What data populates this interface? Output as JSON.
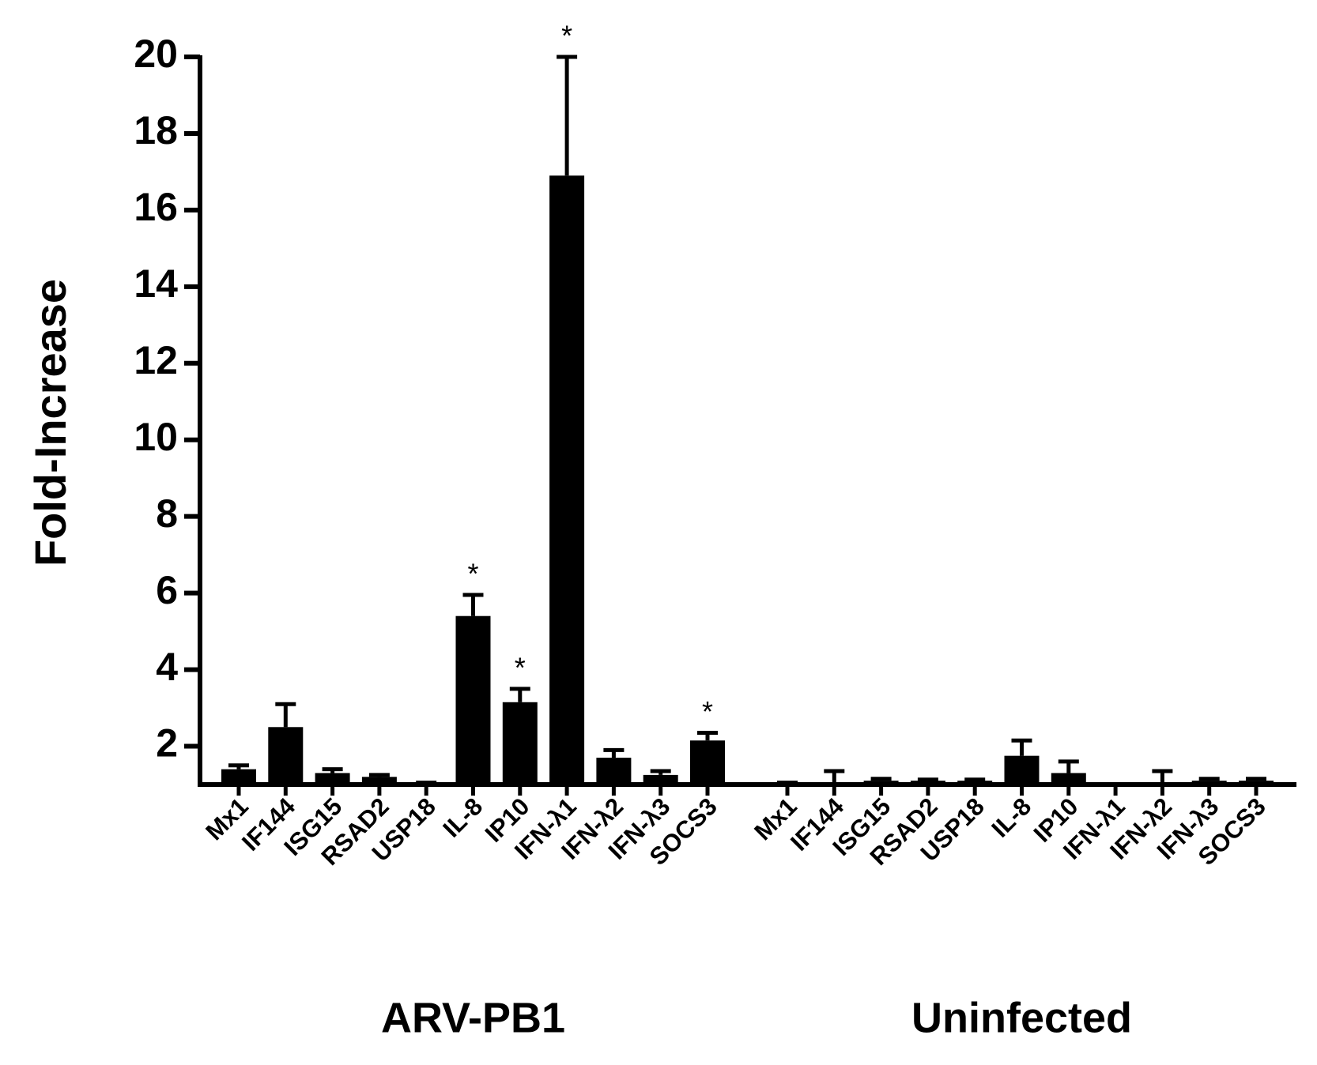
{
  "chart_data": {
    "type": "bar",
    "ylabel": "Fold-Increase",
    "ylim": [
      1,
      20
    ],
    "yticks": [
      2,
      4,
      6,
      8,
      10,
      12,
      14,
      16,
      18,
      20
    ],
    "color": "#000000",
    "groups": [
      {
        "name": "ARV-PB1",
        "categories": [
          "Mx1",
          "IF144",
          "ISG15",
          "RSAD2",
          "USP18",
          "IL-8",
          "IP10",
          "IFN-λ1",
          "IFN-λ2",
          "IFN-λ3",
          "SOCS3"
        ],
        "values": [
          1.4,
          2.5,
          1.3,
          1.2,
          1.05,
          5.4,
          3.15,
          16.9,
          1.7,
          1.25,
          2.15
        ],
        "errors": [
          0.1,
          0.6,
          0.1,
          0.05,
          0,
          0.55,
          0.35,
          3.1,
          0.2,
          0.1,
          0.2
        ],
        "annotations": [
          null,
          null,
          null,
          null,
          null,
          "*",
          "*",
          "*",
          null,
          null,
          "*"
        ]
      },
      {
        "name": "Uninfected",
        "categories": [
          "Mx1",
          "IF144",
          "ISG15",
          "RSAD2",
          "USP18",
          "IL-8",
          "IP10",
          "IFN-λ1",
          "IFN-λ2",
          "IFN-λ3",
          "SOCS3"
        ],
        "values": [
          1.05,
          1.0,
          1.1,
          1.1,
          1.1,
          1.75,
          1.3,
          1.0,
          1.05,
          1.1,
          1.1
        ],
        "errors": [
          0,
          0.35,
          0.05,
          0.03,
          0.03,
          0.4,
          0.3,
          0,
          0.3,
          0.05,
          0.05
        ],
        "annotations": [
          null,
          null,
          null,
          null,
          null,
          null,
          null,
          null,
          null,
          null,
          null
        ]
      }
    ]
  }
}
